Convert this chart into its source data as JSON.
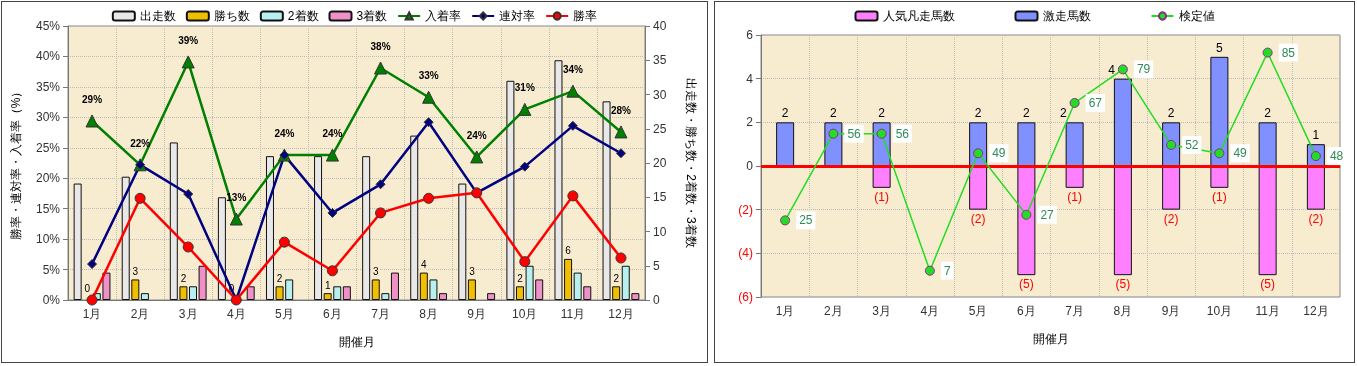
{
  "chart_data": [
    {
      "type": "bar",
      "xlabel": "開催月",
      "ylabel": "勝率・連対率・入着率（%）",
      "y2label": "出走数・勝ち数・2着数・3着数",
      "categories": [
        "1月",
        "2月",
        "3月",
        "4月",
        "5月",
        "6月",
        "7月",
        "8月",
        "9月",
        "10月",
        "11月",
        "12月"
      ],
      "series": [
        {
          "name": "出走数",
          "axis": "y2",
          "color": "#e8e8e8",
          "values": [
            17,
            18,
            23,
            15,
            21,
            21,
            21,
            24,
            17,
            32,
            35,
            29
          ]
        },
        {
          "name": "勝ち数",
          "axis": "y2",
          "color": "#f0c000",
          "values": [
            0,
            3,
            2,
            0,
            2,
            1,
            3,
            4,
            3,
            2,
            6,
            2
          ],
          "value_labels": [
            "0",
            "3",
            "2",
            "0",
            "2",
            "1",
            "3",
            "4",
            "3",
            "2",
            "6",
            "2"
          ]
        },
        {
          "name": "2着数",
          "axis": "y2",
          "color": "#b8f0f0",
          "values": [
            1,
            1,
            2,
            0,
            3,
            2,
            1,
            3,
            0,
            5,
            4,
            5
          ]
        },
        {
          "name": "3着数",
          "axis": "y2",
          "color": "#f090c8",
          "values": [
            4,
            0,
            5,
            2,
            0,
            2,
            4,
            1,
            1,
            3,
            2,
            1
          ]
        },
        {
          "name": "入着率",
          "type": "line",
          "axis": "y",
          "color": "#008000",
          "marker": "triangle",
          "values": [
            29.4,
            22.2,
            39.1,
            13.3,
            23.8,
            23.8,
            38.1,
            33.3,
            23.5,
            31.3,
            34.3,
            27.6
          ],
          "value_labels": [
            "29%",
            "22%",
            "39%",
            "13%",
            "24%",
            "24%",
            "38%",
            "33%",
            "24%",
            "31%",
            "34%",
            "28%"
          ]
        },
        {
          "name": "連対率",
          "type": "line",
          "axis": "y",
          "color": "#000080",
          "marker": "diamond",
          "values": [
            5.9,
            22.2,
            17.4,
            0,
            23.8,
            14.3,
            19.0,
            29.2,
            17.6,
            21.9,
            28.6,
            24.1
          ]
        },
        {
          "name": "勝率",
          "type": "line",
          "axis": "y",
          "color": "#ff0000",
          "marker": "circle",
          "values": [
            0,
            16.7,
            8.7,
            0,
            9.5,
            4.8,
            14.3,
            16.7,
            17.6,
            6.3,
            17.1,
            6.9
          ]
        }
      ],
      "ylim": [
        0,
        45
      ],
      "yticks": [
        {
          "value": 0,
          "label": "0%"
        },
        {
          "value": 5,
          "label": "5%"
        },
        {
          "value": 10,
          "label": "10%"
        },
        {
          "value": 15,
          "label": "15%"
        },
        {
          "value": 20,
          "label": "20%"
        },
        {
          "value": 25,
          "label": "25%"
        },
        {
          "value": 30,
          "label": "30%"
        },
        {
          "value": 35,
          "label": "35%"
        },
        {
          "value": 40,
          "label": "40%"
        },
        {
          "value": 45,
          "label": "45%"
        }
      ],
      "y2lim": [
        0,
        40
      ],
      "y2ticks": [
        0,
        5,
        10,
        15,
        20,
        25,
        30,
        35,
        40
      ],
      "grid": true,
      "legend": "top"
    },
    {
      "type": "bar",
      "xlabel": "開催月",
      "stacked": true,
      "categories": [
        "1月",
        "2月",
        "3月",
        "4月",
        "5月",
        "6月",
        "7月",
        "8月",
        "9月",
        "10月",
        "11月",
        "12月"
      ],
      "series": [
        {
          "name": "人気凡走馬数",
          "axis": "y",
          "color": "#ff80ff",
          "values": [
            0,
            0,
            -1,
            0,
            -2,
            -5,
            -1,
            -5,
            -2,
            -1,
            -5,
            -2
          ],
          "value_labels": [
            null,
            null,
            "(1)",
            null,
            "(2)",
            "(5)",
            "(1)",
            "(5)",
            "(2)",
            "(1)",
            "(5)",
            "(2)"
          ]
        },
        {
          "name": "激走馬数",
          "axis": "y",
          "color": "#8090ff",
          "values": [
            2,
            2,
            2,
            0,
            2,
            2,
            2,
            4,
            2,
            5,
            2,
            1
          ],
          "value_labels": [
            "2",
            "2",
            "2",
            null,
            "2",
            "2",
            "2",
            "4",
            "2",
            "5",
            "2",
            "1"
          ]
        },
        {
          "name": "検定値",
          "type": "line",
          "axis": "y2",
          "color": "#22dd22",
          "marker": "circle",
          "values": [
            25,
            56,
            56,
            7,
            49,
            27,
            67,
            79,
            52,
            49,
            85,
            48
          ],
          "value_labels": [
            "25",
            "56",
            "56",
            "7",
            "49",
            "27",
            "67",
            "79",
            "52",
            "49",
            "85",
            "48"
          ]
        }
      ],
      "ylim": [
        -6,
        6
      ],
      "yticks": [
        {
          "value": -6,
          "label": "(6)"
        },
        {
          "value": -4,
          "label": "(4)"
        },
        {
          "value": -2,
          "label": "(2)"
        },
        0,
        2,
        4,
        6
      ],
      "y2lim": [
        -2.4,
        91.3
      ],
      "tick_labels": "xy",
      "ref_lines": [
        {
          "axis": "y",
          "value": 0,
          "color": "#ff0000"
        }
      ],
      "grid": true,
      "legend": "top"
    }
  ]
}
